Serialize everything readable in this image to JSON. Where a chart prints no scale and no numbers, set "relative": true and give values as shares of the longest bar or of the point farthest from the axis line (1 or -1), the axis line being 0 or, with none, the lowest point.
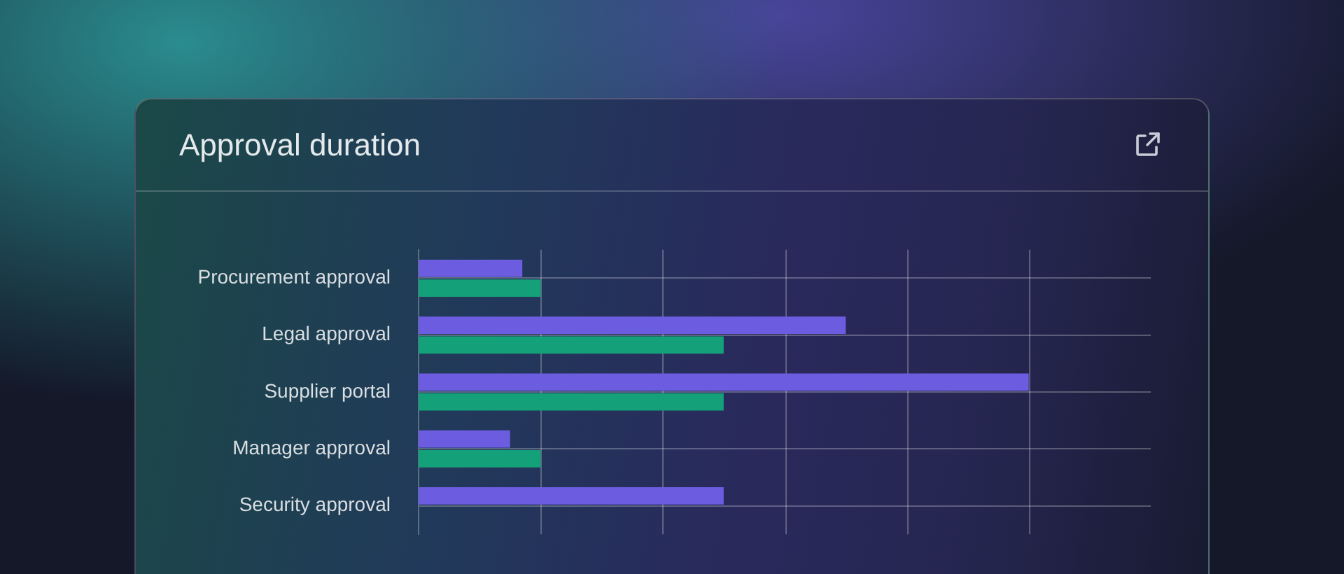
{
  "chart_data": {
    "type": "bar",
    "title": "Approval duration",
    "orientation": "horizontal",
    "relative": true,
    "categories": [
      "Procurement approval",
      "Legal approval",
      "Supplier portal",
      "Manager approval",
      "Security approval"
    ],
    "series": [
      {
        "color": "#6c5ce0",
        "values": [
          0.17,
          0.7,
          1,
          0.15,
          0.5
        ]
      },
      {
        "color": "#14a078",
        "values": [
          0.2,
          0.5,
          0.5,
          0.2,
          null
        ]
      }
    ],
    "grid": true,
    "legend": false
  }
}
